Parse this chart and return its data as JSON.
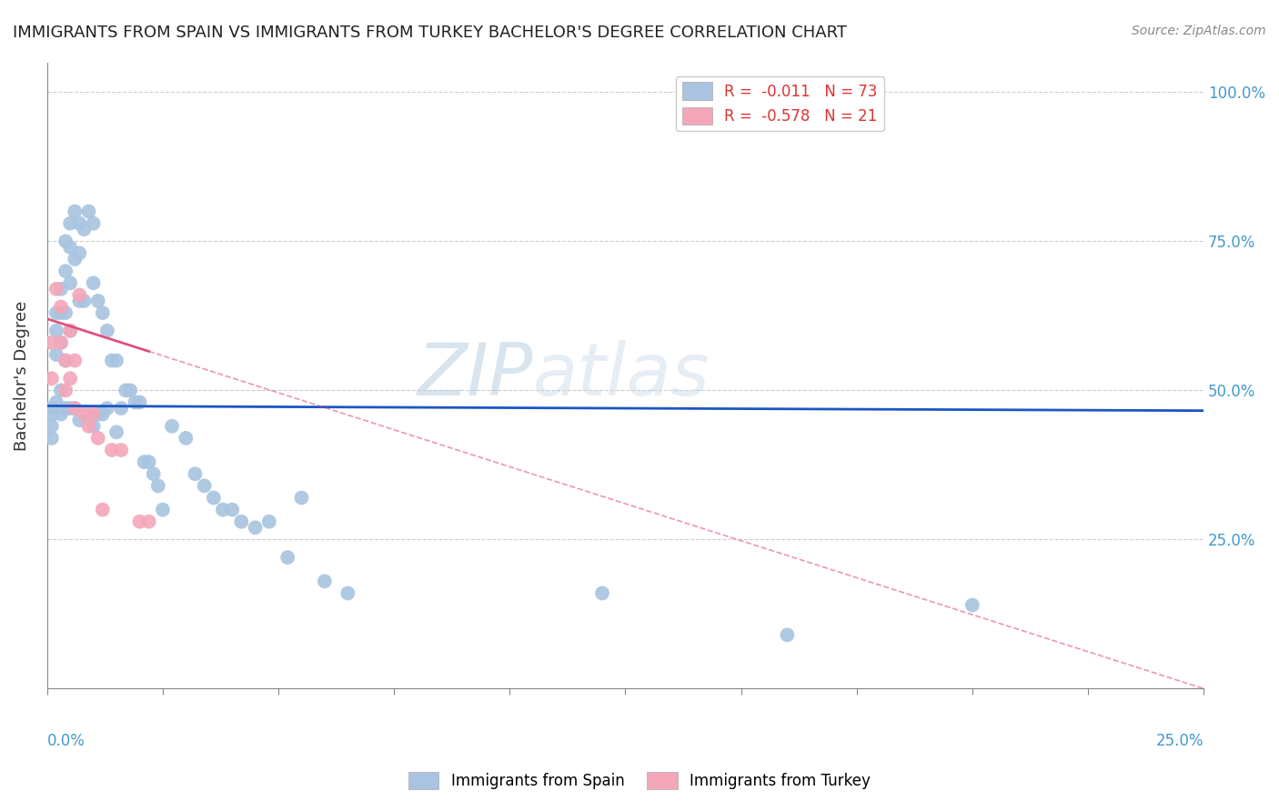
{
  "title": "IMMIGRANTS FROM SPAIN VS IMMIGRANTS FROM TURKEY BACHELOR'S DEGREE CORRELATION CHART",
  "source": "Source: ZipAtlas.com",
  "ylabel": "Bachelor's Degree",
  "yticks": [
    0.0,
    0.25,
    0.5,
    0.75,
    1.0
  ],
  "ytick_labels": [
    "",
    "25.0%",
    "50.0%",
    "75.0%",
    "100.0%"
  ],
  "xlim": [
    0.0,
    0.25
  ],
  "ylim": [
    0.0,
    1.05
  ],
  "legend_spain": "R =  -0.011   N = 73",
  "legend_turkey": "R =  -0.578   N = 21",
  "spain_color": "#a8c4e0",
  "turkey_color": "#f4a7b9",
  "spain_line_color": "#1a56c4",
  "turkey_line_color": "#e05080",
  "watermark_zip": "ZIP",
  "watermark_atlas": "atlas",
  "spain_R": -0.011,
  "turkey_R": -0.578,
  "spain_N": 73,
  "turkey_N": 21,
  "spain_x": [
    0.001,
    0.001,
    0.001,
    0.001,
    0.002,
    0.002,
    0.002,
    0.002,
    0.003,
    0.003,
    0.003,
    0.003,
    0.003,
    0.004,
    0.004,
    0.004,
    0.004,
    0.004,
    0.005,
    0.005,
    0.005,
    0.005,
    0.005,
    0.006,
    0.006,
    0.006,
    0.007,
    0.007,
    0.007,
    0.007,
    0.008,
    0.008,
    0.009,
    0.009,
    0.01,
    0.01,
    0.01,
    0.011,
    0.011,
    0.012,
    0.012,
    0.013,
    0.013,
    0.014,
    0.015,
    0.015,
    0.016,
    0.017,
    0.018,
    0.019,
    0.02,
    0.021,
    0.022,
    0.023,
    0.024,
    0.025,
    0.027,
    0.03,
    0.032,
    0.034,
    0.036,
    0.038,
    0.04,
    0.042,
    0.045,
    0.048,
    0.052,
    0.055,
    0.06,
    0.065,
    0.12,
    0.16,
    0.2
  ],
  "spain_y": [
    0.47,
    0.46,
    0.44,
    0.42,
    0.63,
    0.6,
    0.56,
    0.48,
    0.67,
    0.63,
    0.58,
    0.5,
    0.46,
    0.75,
    0.7,
    0.63,
    0.55,
    0.47,
    0.78,
    0.74,
    0.68,
    0.6,
    0.47,
    0.8,
    0.72,
    0.47,
    0.78,
    0.73,
    0.65,
    0.45,
    0.77,
    0.65,
    0.8,
    0.46,
    0.78,
    0.68,
    0.44,
    0.65,
    0.46,
    0.63,
    0.46,
    0.6,
    0.47,
    0.55,
    0.55,
    0.43,
    0.47,
    0.5,
    0.5,
    0.48,
    0.48,
    0.38,
    0.38,
    0.36,
    0.34,
    0.3,
    0.44,
    0.42,
    0.36,
    0.34,
    0.32,
    0.3,
    0.3,
    0.28,
    0.27,
    0.28,
    0.22,
    0.32,
    0.18,
    0.16,
    0.16,
    0.09,
    0.14
  ],
  "turkey_x": [
    0.001,
    0.001,
    0.002,
    0.003,
    0.003,
    0.004,
    0.004,
    0.005,
    0.005,
    0.006,
    0.006,
    0.007,
    0.008,
    0.009,
    0.01,
    0.011,
    0.012,
    0.014,
    0.016,
    0.02,
    0.022
  ],
  "turkey_y": [
    0.58,
    0.52,
    0.67,
    0.64,
    0.58,
    0.55,
    0.5,
    0.6,
    0.52,
    0.55,
    0.47,
    0.66,
    0.46,
    0.44,
    0.46,
    0.42,
    0.3,
    0.4,
    0.4,
    0.28,
    0.28
  ],
  "spain_line_y0": 0.474,
  "spain_line_y1": 0.466,
  "turkey_line_y0": 0.62,
  "turkey_line_y1": 0.0
}
